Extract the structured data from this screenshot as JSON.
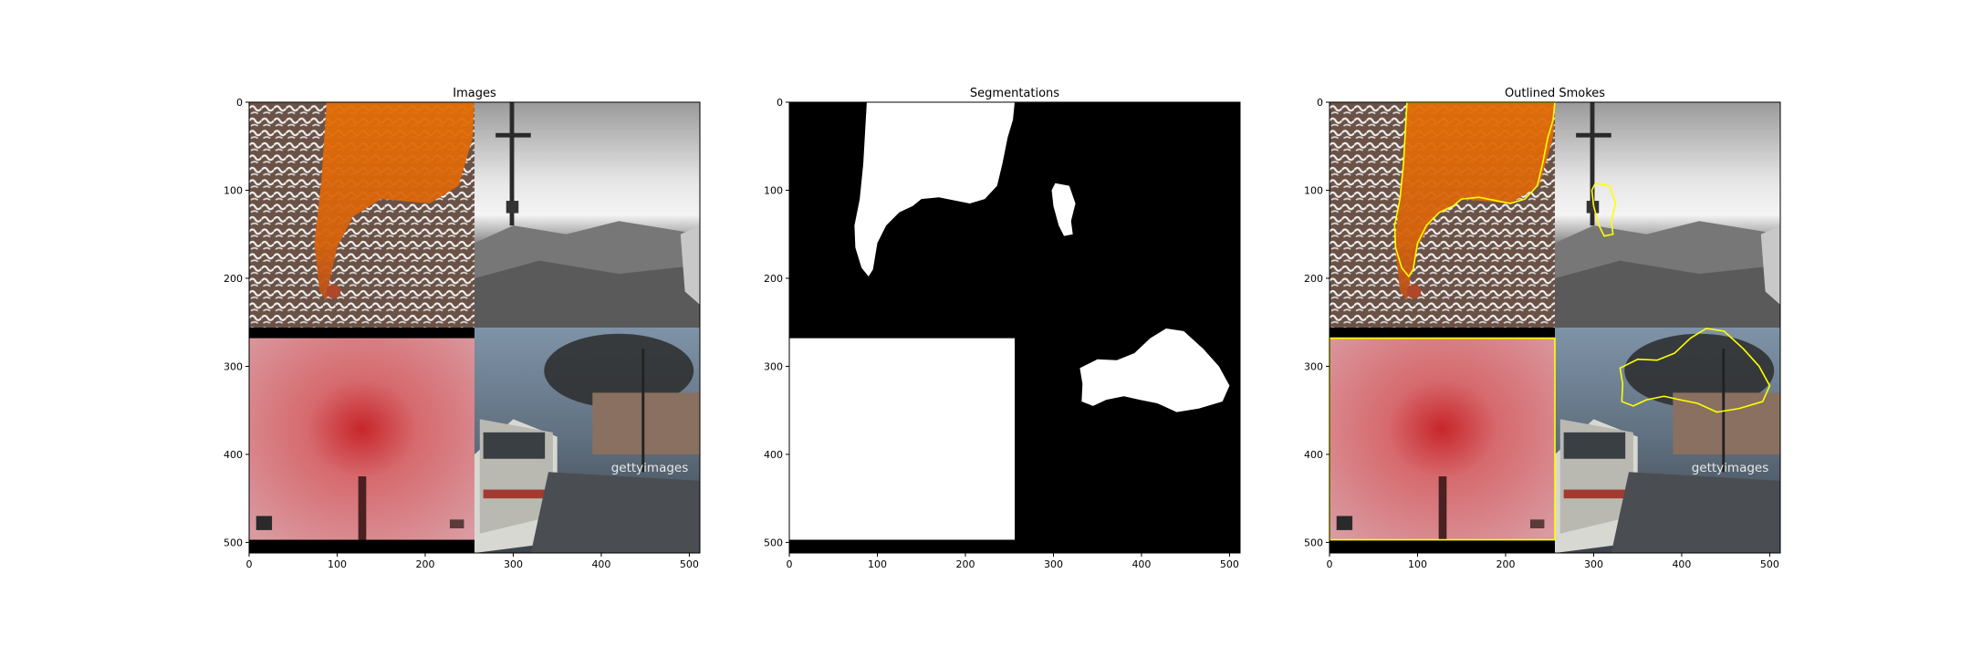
{
  "chart_data": [
    {
      "type": "image",
      "title": "Images",
      "xlabel": "",
      "ylabel": "",
      "xlim": [
        0,
        512
      ],
      "ylim": [
        512,
        0
      ],
      "xticks": [
        0,
        100,
        200,
        300,
        400,
        500
      ],
      "yticks": [
        0,
        100,
        200,
        300,
        400,
        500
      ],
      "tiles": [
        "orange-smoke-on-snowy-ground",
        "grayscale-hillside-smoke",
        "red-smoke-chimney",
        "bus-black-exhaust-smoke"
      ],
      "watermark_text": "gettyimages"
    },
    {
      "type": "heatmap",
      "title": "Segmentations",
      "xlabel": "",
      "ylabel": "",
      "xlim": [
        0,
        512
      ],
      "ylim": [
        512,
        0
      ],
      "xticks": [
        0,
        100,
        200,
        300,
        400,
        500
      ],
      "yticks": [
        0,
        100,
        200,
        300,
        400,
        500
      ],
      "colors": {
        "background": "#000000",
        "mask": "#ffffff"
      }
    },
    {
      "type": "image",
      "title": "Outlined Smokes",
      "xlabel": "",
      "ylabel": "",
      "xlim": [
        0,
        512
      ],
      "ylim": [
        512,
        0
      ],
      "xticks": [
        0,
        100,
        200,
        300,
        400,
        500
      ],
      "yticks": [
        0,
        100,
        200,
        300,
        400,
        500
      ],
      "outline_color": "#ffff00",
      "tiles": [
        "orange-smoke-on-snowy-ground",
        "grayscale-hillside-smoke",
        "red-smoke-chimney",
        "bus-black-exhaust-smoke"
      ],
      "watermark_text": "gettyimages"
    }
  ],
  "masks": [
    {
      "name": "orange-smoke-mask",
      "points": [
        [
          88,
          0
        ],
        [
          256,
          0
        ],
        [
          254,
          20
        ],
        [
          248,
          40
        ],
        [
          242,
          70
        ],
        [
          236,
          95
        ],
        [
          222,
          110
        ],
        [
          205,
          115
        ],
        [
          190,
          112
        ],
        [
          170,
          108
        ],
        [
          150,
          110
        ],
        [
          140,
          118
        ],
        [
          125,
          125
        ],
        [
          110,
          140
        ],
        [
          100,
          160
        ],
        [
          95,
          190
        ],
        [
          90,
          198
        ],
        [
          82,
          188
        ],
        [
          75,
          165
        ],
        [
          74,
          140
        ],
        [
          80,
          110
        ],
        [
          84,
          70
        ],
        [
          86,
          35
        ]
      ]
    },
    {
      "name": "hillside-smoke-mask",
      "points": [
        [
          302,
          92
        ],
        [
          318,
          95
        ],
        [
          325,
          115
        ],
        [
          320,
          135
        ],
        [
          322,
          150
        ],
        [
          312,
          152
        ],
        [
          306,
          140
        ],
        [
          300,
          118
        ],
        [
          298,
          100
        ]
      ]
    },
    {
      "name": "red-smoke-mask",
      "points": [
        [
          0,
          268
        ],
        [
          256,
          268
        ],
        [
          256,
          497
        ],
        [
          0,
          497
        ]
      ]
    },
    {
      "name": "bus-smoke-mask",
      "points": [
        [
          330,
          302
        ],
        [
          350,
          292
        ],
        [
          372,
          293
        ],
        [
          392,
          285
        ],
        [
          410,
          268
        ],
        [
          428,
          257
        ],
        [
          448,
          260
        ],
        [
          470,
          280
        ],
        [
          488,
          300
        ],
        [
          500,
          322
        ],
        [
          492,
          340
        ],
        [
          465,
          348
        ],
        [
          440,
          352
        ],
        [
          418,
          342
        ],
        [
          398,
          338
        ],
        [
          380,
          334
        ],
        [
          360,
          338
        ],
        [
          345,
          345
        ],
        [
          332,
          340
        ],
        [
          333,
          320
        ]
      ]
    }
  ]
}
